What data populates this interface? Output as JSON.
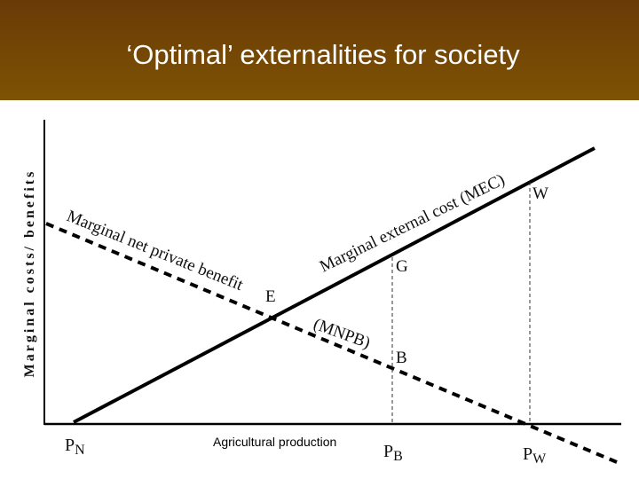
{
  "header": {
    "title": "‘Optimal’ externalities for society"
  },
  "y_axis_label": "Marginal costs/ benefits",
  "curves": {
    "mnpb_label": "Marginal net private benefit",
    "mnpb_abbrev": "(MNPB)",
    "mec_label": "Marginal external cost (MEC)"
  },
  "points": {
    "e": "E",
    "g": "G",
    "b": "B",
    "w": "W"
  },
  "x_labels": [
    {
      "main": "P",
      "sub": "N"
    },
    {
      "main": "P",
      "sub": "B"
    },
    {
      "main": "P",
      "sub": "W"
    }
  ],
  "x_axis_label": "Agricultural production"
}
